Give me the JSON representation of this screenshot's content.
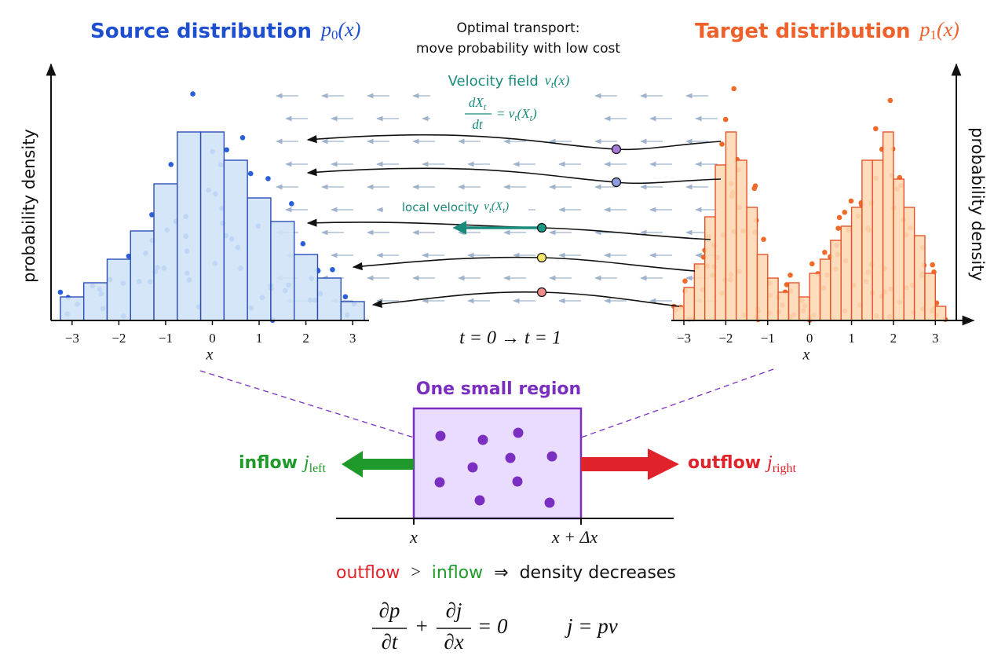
{
  "source": {
    "title": "Source distribution",
    "symbol": "p",
    "symbol_sub": "0",
    "symbol_arg": "(x)",
    "y_label": "probability density",
    "x_label": "x",
    "bins": [
      -3.25,
      -2.75,
      -2.25,
      -1.75,
      -1.25,
      -0.75,
      -0.25,
      0.25,
      0.75,
      1.25,
      1.75,
      2.25,
      2.75,
      3.25
    ],
    "values": [
      0.05,
      0.08,
      0.13,
      0.19,
      0.29,
      0.4,
      0.4,
      0.34,
      0.26,
      0.21,
      0.14,
      0.09,
      0.04
    ],
    "xlim": [
      -3.45,
      3.35
    ],
    "ylim": [
      0,
      0.45
    ],
    "xticks": [
      {
        "value": -3,
        "label": "−3"
      },
      {
        "value": -2,
        "label": "−2"
      },
      {
        "value": -1,
        "label": "−1"
      },
      0,
      1,
      2,
      3
    ],
    "color": "#2a5fd8"
  },
  "target": {
    "title": "Target distribution",
    "symbol": "p",
    "symbol_sub": "1",
    "symbol_arg": "(x)",
    "y_label": "probability density",
    "x_label": "x",
    "bins": [
      -3.25,
      -3.0,
      -2.75,
      -2.5,
      -2.25,
      -2.0,
      -1.75,
      -1.5,
      -1.25,
      -1.0,
      -0.75,
      -0.5,
      -0.25,
      0.0,
      0.25,
      0.5,
      0.75,
      1.0,
      1.25,
      1.5,
      1.75,
      2.0,
      2.25,
      2.5,
      2.75,
      3.0,
      3.25
    ],
    "values": [
      0.03,
      0.07,
      0.12,
      0.22,
      0.33,
      0.4,
      0.34,
      0.24,
      0.14,
      0.09,
      0.06,
      0.08,
      0.05,
      0.1,
      0.13,
      0.17,
      0.2,
      0.24,
      0.34,
      0.34,
      0.4,
      0.3,
      0.24,
      0.18,
      0.1,
      0.03
    ],
    "xlim": [
      -3.3,
      3.5
    ],
    "ylim": [
      0,
      0.45
    ],
    "xticks": [
      {
        "value": -3,
        "label": "−3"
      },
      {
        "value": -2,
        "label": "−2"
      },
      {
        "value": -1,
        "label": "−1"
      },
      0,
      1,
      2,
      3
    ],
    "color": "#f06a2a"
  },
  "transport": {
    "title_line1": "Optimal transport:",
    "title_line2": "move probability with low cost",
    "field_label": "Velocity field",
    "field_symbol": "v",
    "field_sub": "t",
    "field_arg": "(x)",
    "ode_num": "dX",
    "ode_num_sub": "t",
    "ode_den": "dt",
    "ode_rhs": "= v",
    "ode_rhs_sub": "t",
    "ode_rhs_arg": "(X",
    "ode_rhs_arg_sub": "t",
    "ode_rhs_close": ")",
    "local_label": "local velocity",
    "local_symbol": "v",
    "local_sub": "t",
    "local_arg": "(X",
    "local_arg_sub": "t",
    "local_close": ")",
    "time": "t = 0  →  t = 1"
  },
  "region": {
    "title": "One small region",
    "inflow": "inflow",
    "inflow_symbol": "j",
    "inflow_sub": "left",
    "outflow": "outflow",
    "outflow_symbol": "j",
    "outflow_sub": "right",
    "left_edge": "x",
    "right_edge": "x + Δx"
  },
  "conclusion": {
    "outflow": "outflow",
    "gt": ">",
    "inflow": "inflow",
    "implies": "⇒",
    "result": "density decreases"
  },
  "equation": {
    "num1": "∂p",
    "den1": "∂t",
    "plus": "+",
    "num2": "∂j",
    "den2": "∂x",
    "rhs": "= 0",
    "flux": "j = pv"
  }
}
